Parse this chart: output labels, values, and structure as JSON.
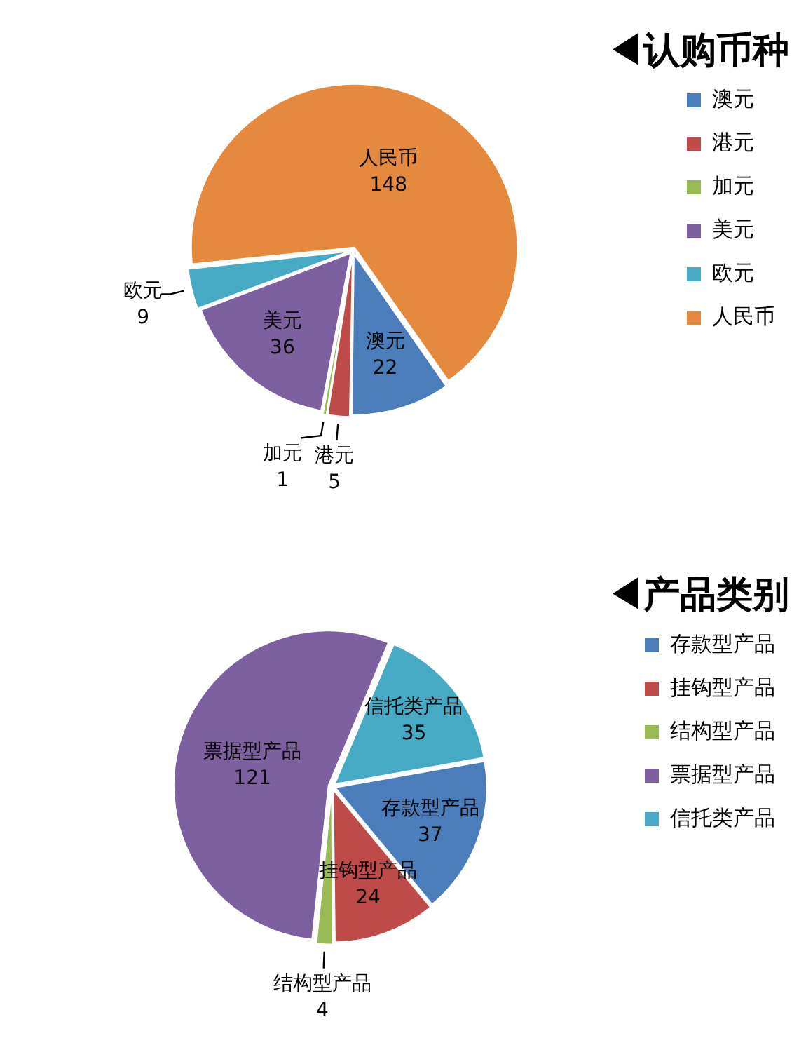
{
  "chart_data": [
    {
      "type": "pie",
      "title": "◀认购币种",
      "categories": [
        "澳元",
        "港元",
        "加元",
        "美元",
        "欧元",
        "人民币"
      ],
      "values": [
        22,
        5,
        1,
        36,
        9,
        148
      ],
      "colors": [
        "#4a7dba",
        "#be4b48",
        "#98b954",
        "#7d60a0",
        "#46aac5",
        "#e5893e"
      ],
      "legend": "right",
      "data_labels": true
    },
    {
      "type": "pie",
      "title": "◀产品类别",
      "categories": [
        "存款型产品",
        "挂钩型产品",
        "结构型产品",
        "票据型产品",
        "信托类产品"
      ],
      "values": [
        37,
        24,
        4,
        121,
        35
      ],
      "colors": [
        "#4a7dba",
        "#be4b48",
        "#98b954",
        "#7d60a0",
        "#46aac5"
      ],
      "legend": "right",
      "data_labels": true
    }
  ]
}
